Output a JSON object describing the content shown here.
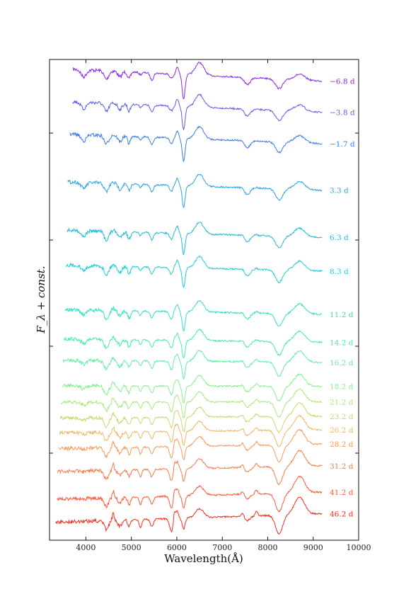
{
  "chart_data": {
    "type": "line",
    "title": "",
    "xlabel": "Wavelength(Å)",
    "ylabel": "F_λ + const.",
    "xlim": [
      3200,
      10000
    ],
    "xticks": [
      4000,
      5000,
      6000,
      7000,
      8000,
      9000,
      10000
    ],
    "x_tick_labels": [
      "4000",
      "5000",
      "6000",
      "7000",
      "8000",
      "9000",
      "10000"
    ],
    "y_ticks_labeled": false,
    "grid": false,
    "legend": "none",
    "series": [
      {
        "name": "−6.8 d",
        "color": "#8b26f5",
        "level": 0.045,
        "start": 3720
      },
      {
        "name": "−3.8 d",
        "color": "#5b5cf2",
        "level": 0.11,
        "start": 3700
      },
      {
        "name": "−1.7 d",
        "color": "#3d7ce8",
        "level": 0.175,
        "start": 3650
      },
      {
        "name": "3.3 d",
        "color": "#27a4e3",
        "level": 0.272,
        "start": 3600
      },
      {
        "name": "6.3 d",
        "color": "#1fbad9",
        "level": 0.37,
        "start": 3580
      },
      {
        "name": "8.3 d",
        "color": "#1cd1d4",
        "level": 0.44,
        "start": 3560
      },
      {
        "name": "11.2 d",
        "color": "#34e0c4",
        "level": 0.53,
        "start": 3540
      },
      {
        "name": "14.2 d",
        "color": "#49ebb6",
        "level": 0.588,
        "start": 3520
      },
      {
        "name": "16.2 d",
        "color": "#62f0a6",
        "level": 0.63,
        "start": 3500
      },
      {
        "name": "18.2 d",
        "color": "#86f290",
        "level": 0.68,
        "start": 3480
      },
      {
        "name": "21.2 d",
        "color": "#a8ea80",
        "level": 0.712,
        "start": 3460
      },
      {
        "name": "23.2 d",
        "color": "#d2d474",
        "level": 0.742,
        "start": 3440
      },
      {
        "name": "26.2 d",
        "color": "#f0b868",
        "level": 0.77,
        "start": 3420
      },
      {
        "name": "28.2 d",
        "color": "#fb9a58",
        "level": 0.8,
        "start": 3400
      },
      {
        "name": "31.2 d",
        "color": "#ff7a4a",
        "level": 0.845,
        "start": 3380
      },
      {
        "name": "41.2 d",
        "color": "#ff5a3a",
        "level": 0.9,
        "start": 3360
      },
      {
        "name": "46.2 d",
        "color": "#ff2a1c",
        "level": 0.945,
        "start": 3340
      }
    ]
  }
}
